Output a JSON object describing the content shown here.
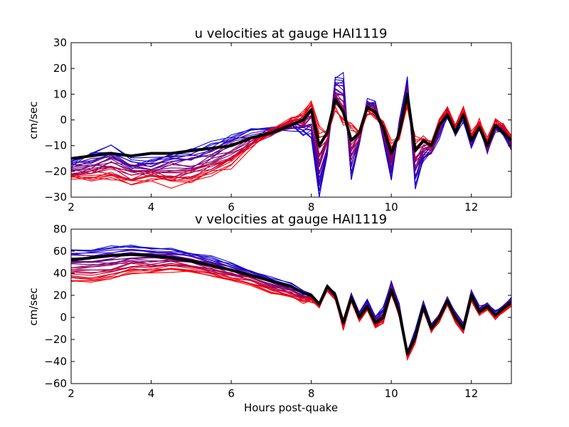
{
  "chart_data": [
    {
      "type": "line",
      "title": "u velocities at gauge HAI1119",
      "xlabel": "",
      "ylabel": "cm/sec",
      "xlim": [
        2,
        13
      ],
      "ylim": [
        -30,
        30
      ],
      "xticks": [
        2,
        4,
        6,
        8,
        10,
        12
      ],
      "yticks": [
        -30,
        -20,
        -10,
        0,
        10,
        20,
        30
      ],
      "xtick_labels": [
        "2",
        "4",
        "6",
        "8",
        "10",
        "12"
      ],
      "ytick_labels": [
        "−30",
        "−20",
        "−10",
        "0",
        "10",
        "20",
        "30"
      ],
      "x": [
        2.0,
        2.5,
        3.0,
        3.5,
        4.0,
        4.5,
        5.0,
        5.5,
        6.0,
        6.5,
        7.0,
        7.5,
        7.8,
        8.0,
        8.2,
        8.4,
        8.6,
        8.8,
        9.0,
        9.2,
        9.4,
        9.6,
        9.8,
        10.0,
        10.2,
        10.4,
        10.6,
        10.8,
        11.0,
        11.2,
        11.4,
        11.6,
        11.8,
        12.0,
        12.2,
        12.4,
        12.6,
        12.8,
        13.0
      ],
      "ensemble": {
        "member_count": 28,
        "color_from": "#0000dd",
        "color_to": "#ff0000",
        "spread_first": [
          -1,
          1,
          2,
          -2,
          -3,
          0,
          0,
          1,
          4,
          2,
          1,
          -1,
          -5,
          -10,
          -20,
          -8,
          8,
          14,
          -16,
          -4,
          2,
          4,
          -4,
          -10,
          4,
          6,
          -14,
          -8,
          -2,
          -4,
          0,
          0,
          -2,
          -2,
          0,
          -2,
          -2,
          0,
          -4
        ],
        "spread_last": [
          -8,
          -10,
          -10,
          -10,
          -10,
          -12,
          -12,
          -10,
          -8,
          -4,
          0,
          2,
          2,
          4,
          6,
          0,
          -4,
          -4,
          6,
          0,
          -2,
          -2,
          2,
          4,
          -2,
          -6,
          4,
          2,
          0,
          2,
          2,
          2,
          2,
          2,
          2,
          2,
          2,
          2,
          2
        ]
      },
      "series": [
        {
          "name": "",
          "color": "#000000",
          "values": [
            -15,
            -14,
            -13,
            -14,
            -13,
            -13,
            -12,
            -11,
            -10,
            -7,
            -5,
            -2,
            0,
            4,
            -10,
            -5,
            8,
            3,
            -8,
            -5,
            5,
            3,
            -3,
            -13,
            -5,
            10,
            -12,
            -8,
            -10,
            -2,
            2,
            -5,
            2,
            -8,
            -3,
            -10,
            -2,
            -5,
            -8
          ]
        }
      ]
    },
    {
      "type": "line",
      "title": "v velocities at gauge HAI1119",
      "xlabel": "Hours post-quake",
      "ylabel": "cm/sec",
      "xlim": [
        2,
        13
      ],
      "ylim": [
        -60,
        80
      ],
      "xticks": [
        2,
        4,
        6,
        8,
        10,
        12
      ],
      "yticks": [
        -60,
        -40,
        -20,
        0,
        20,
        40,
        60,
        80
      ],
      "xtick_labels": [
        "2",
        "4",
        "6",
        "8",
        "10",
        "12"
      ],
      "ytick_labels": [
        "−60",
        "−40",
        "−20",
        "0",
        "20",
        "40",
        "60",
        "80"
      ],
      "x": [
        2.0,
        2.5,
        3.0,
        3.5,
        4.0,
        4.5,
        5.0,
        5.5,
        6.0,
        6.5,
        7.0,
        7.5,
        7.8,
        8.0,
        8.2,
        8.4,
        8.6,
        8.8,
        9.0,
        9.2,
        9.4,
        9.6,
        9.8,
        10.0,
        10.2,
        10.4,
        10.6,
        10.8,
        11.0,
        11.2,
        11.4,
        11.6,
        11.8,
        12.0,
        12.2,
        12.4,
        12.6,
        12.8,
        13.0
      ],
      "ensemble": {
        "member_count": 28,
        "color_from": "#0000dd",
        "color_to": "#ff0000",
        "spread_first": [
          10,
          8,
          8,
          8,
          8,
          8,
          8,
          8,
          6,
          4,
          3,
          2,
          2,
          1,
          0,
          1,
          2,
          3,
          3,
          4,
          5,
          6,
          8,
          8,
          6,
          3,
          6,
          4,
          3,
          3,
          4,
          5,
          5,
          4,
          4,
          3,
          3,
          3,
          3
        ],
        "spread_last": [
          -20,
          -22,
          -22,
          -18,
          -16,
          -12,
          -10,
          -10,
          -10,
          -8,
          -10,
          -10,
          -8,
          -6,
          -2,
          -3,
          -4,
          -6,
          -4,
          -3,
          -3,
          -5,
          -6,
          -4,
          -4,
          -5,
          -5,
          -4,
          -3,
          -3,
          -3,
          -4,
          -4,
          -4,
          -3,
          -3,
          -3,
          -3,
          -3
        ]
      },
      "series": [
        {
          "name": "",
          "color": "#000000",
          "values": [
            52,
            54,
            56,
            57,
            56,
            54,
            51,
            47,
            43,
            38,
            33,
            28,
            22,
            20,
            12,
            28,
            20,
            -5,
            18,
            0,
            10,
            -5,
            0,
            25,
            5,
            -33,
            -18,
            10,
            -10,
            0,
            15,
            0,
            -10,
            20,
            5,
            10,
            2,
            8,
            14
          ]
        }
      ]
    }
  ]
}
